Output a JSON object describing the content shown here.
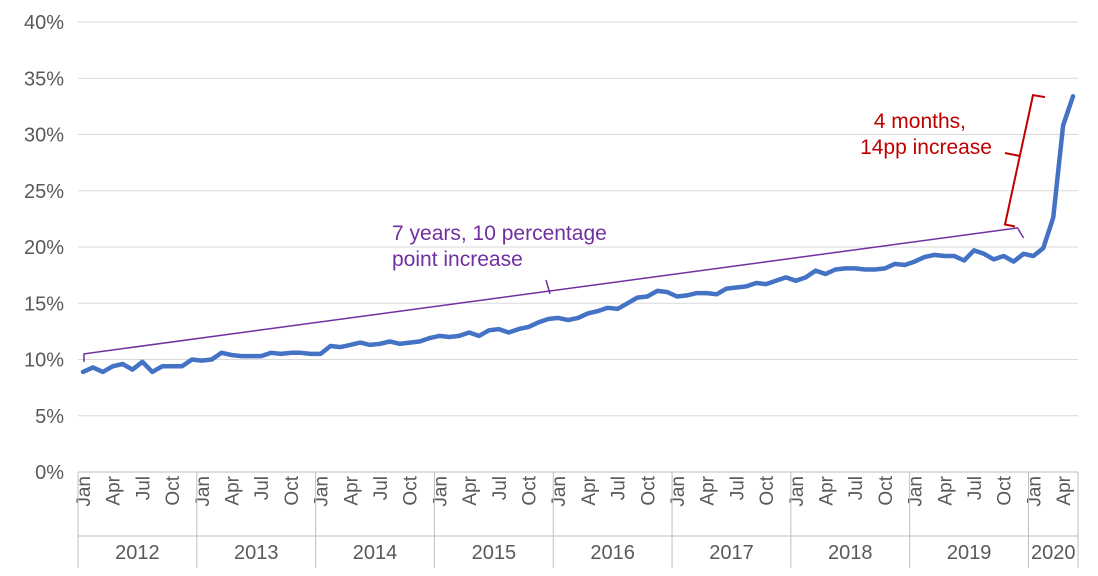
{
  "chart_data": {
    "type": "line",
    "title": "",
    "xlabel": "",
    "ylabel": "",
    "ylim": [
      0,
      40
    ],
    "y_unit": "%",
    "y_ticks": [
      "0%",
      "5%",
      "10%",
      "15%",
      "20%",
      "25%",
      "30%",
      "35%",
      "40%"
    ],
    "grid": true,
    "x_month_labels": [
      "Jan",
      "Apr",
      "Jul",
      "Oct"
    ],
    "years": [
      "2012",
      "2013",
      "2014",
      "2015",
      "2016",
      "2017",
      "2018",
      "2019",
      "2020"
    ],
    "x_start": "2012-01",
    "x_end": "2020-05",
    "series": [
      {
        "color": "#4472c4",
        "values": [
          8.9,
          9.3,
          8.9,
          9.4,
          9.6,
          9.1,
          9.8,
          8.9,
          9.4,
          9.4,
          9.4,
          10.0,
          9.9,
          10.0,
          10.6,
          10.4,
          10.3,
          10.3,
          10.3,
          10.6,
          10.5,
          10.6,
          10.6,
          10.5,
          10.5,
          11.2,
          11.1,
          11.3,
          11.5,
          11.3,
          11.4,
          11.6,
          11.4,
          11.5,
          11.6,
          11.9,
          12.1,
          12.0,
          12.1,
          12.4,
          12.1,
          12.6,
          12.7,
          12.4,
          12.7,
          12.9,
          13.3,
          13.6,
          13.7,
          13.5,
          13.7,
          14.1,
          14.3,
          14.6,
          14.5,
          15.0,
          15.5,
          15.6,
          16.1,
          16.0,
          15.6,
          15.7,
          15.9,
          15.9,
          15.8,
          16.3,
          16.4,
          16.5,
          16.8,
          16.7,
          17.0,
          17.3,
          17.0,
          17.3,
          17.9,
          17.6,
          18.0,
          18.1,
          18.1,
          18.0,
          18.0,
          18.1,
          18.5,
          18.4,
          18.7,
          19.1,
          19.3,
          19.2,
          19.2,
          18.8,
          19.7,
          19.4,
          18.9,
          19.2,
          18.7,
          19.4,
          19.2,
          19.9,
          22.6,
          30.8,
          33.4
        ]
      }
    ],
    "annotations": [
      {
        "lines": [
          "7 years, 10 percentage",
          "point increase"
        ],
        "color": "#7030a0",
        "from": {
          "x": "2012-01",
          "y": 10.5
        },
        "to": {
          "x": "2019-12",
          "y": 21.7
        }
      },
      {
        "lines": [
          "4 months,",
          "14pp increase"
        ],
        "color": "#c00000",
        "from": {
          "x": "2019-12",
          "y": 22.0
        },
        "to": {
          "x": "2020-04",
          "y": 33.5
        }
      }
    ]
  }
}
